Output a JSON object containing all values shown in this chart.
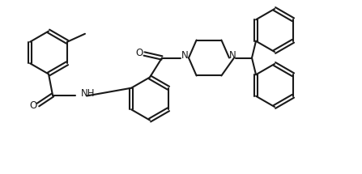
{
  "bg": "#ffffff",
  "lc": "#1a1a1a",
  "lw": 1.5,
  "fs": 8.5,
  "r": 0.265,
  "doff": 0.022,
  "figw": 4.47,
  "figh": 2.15,
  "xlim": [
    0,
    4.47
  ],
  "ylim": [
    0,
    2.15
  ]
}
